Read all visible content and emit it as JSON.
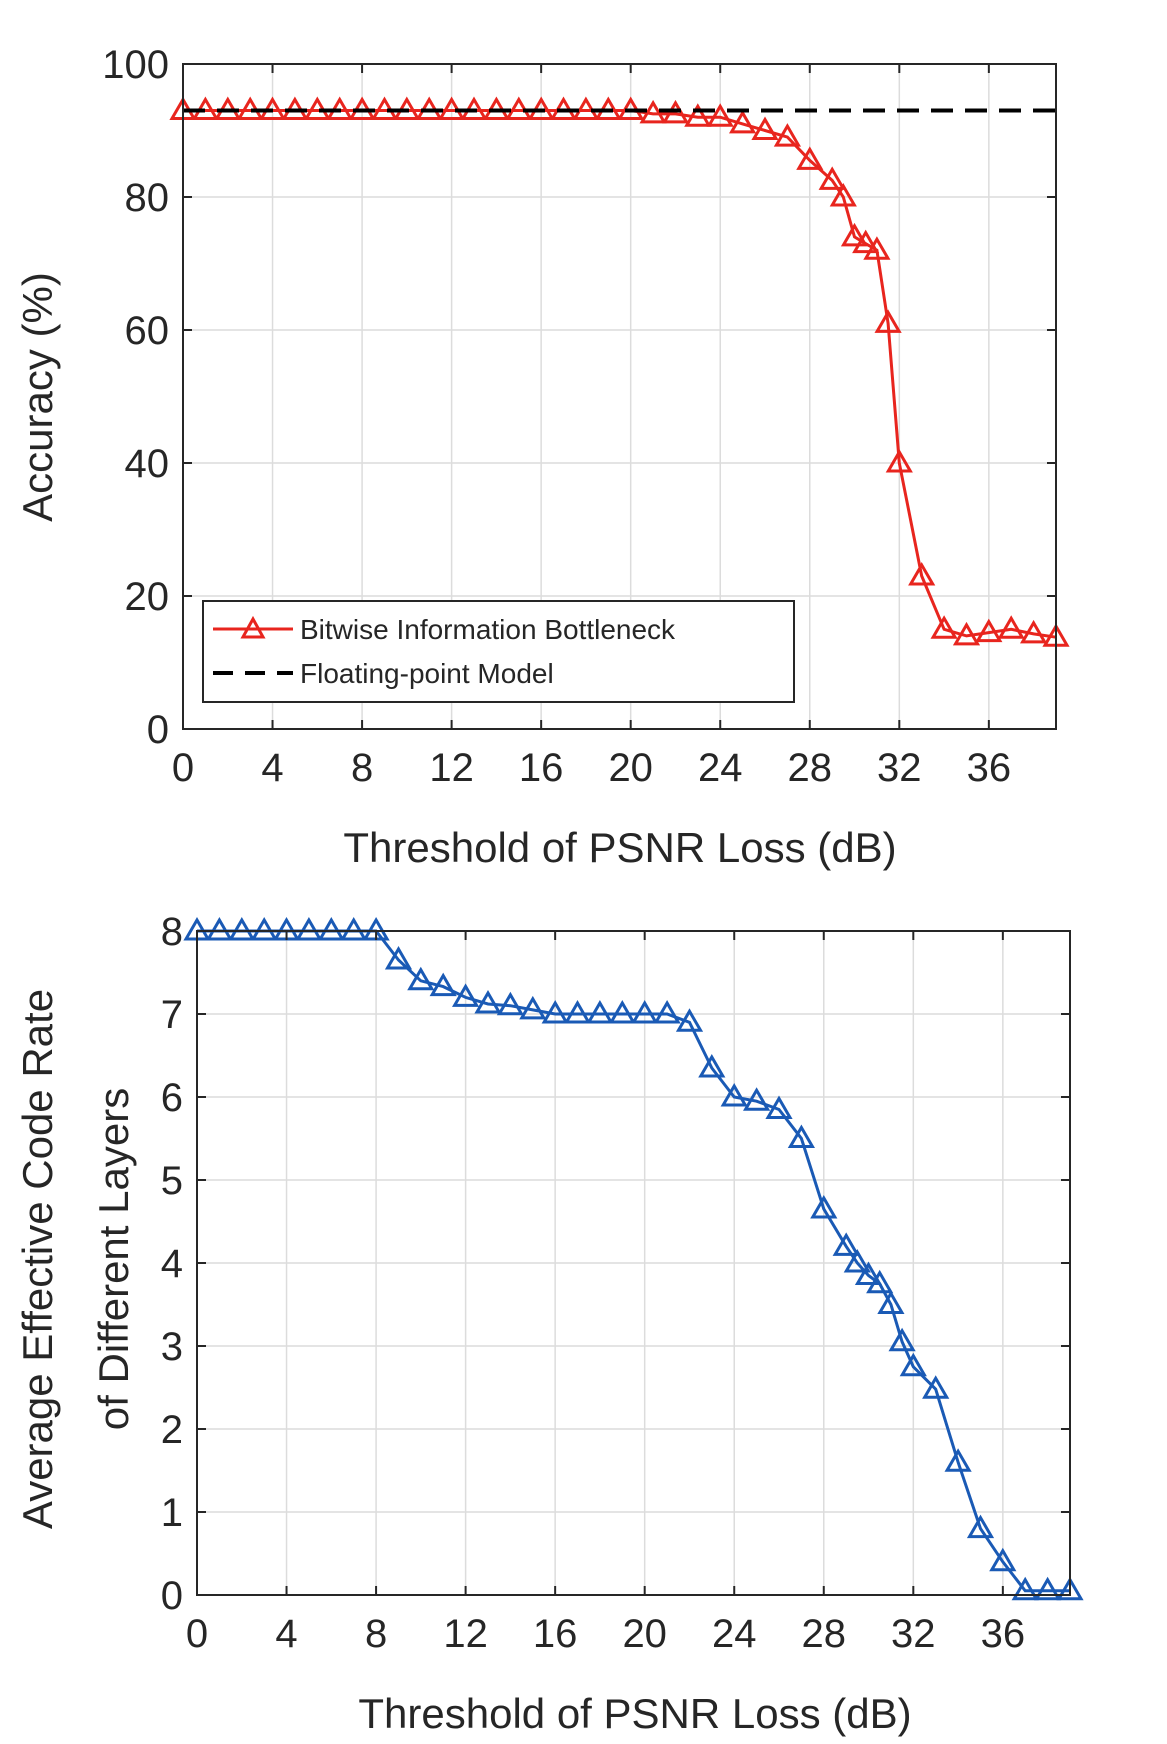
{
  "chart_data": [
    {
      "type": "line",
      "title": "",
      "xlabel": "Threshold of PSNR Loss (dB)",
      "ylabel": "Accuracy (%)",
      "xlim": [
        0,
        39
      ],
      "ylim": [
        0,
        100
      ],
      "xticks": [
        0,
        4,
        8,
        12,
        16,
        20,
        24,
        28,
        32,
        36
      ],
      "yticks": [
        0,
        20,
        40,
        60,
        80,
        100
      ],
      "grid": true,
      "legend_position": "bottom-left",
      "series": [
        {
          "name": "Bitwise Information Bottleneck",
          "color": "#e8251e",
          "line_style": "solid",
          "marker": "triangle",
          "x": [
            0,
            1,
            2,
            3,
            4,
            5,
            6,
            7,
            8,
            9,
            10,
            11,
            12,
            13,
            14,
            15,
            16,
            17,
            18,
            19,
            20,
            21,
            22,
            23,
            24,
            25,
            26,
            27,
            28,
            29,
            29.5,
            30,
            30.5,
            31,
            31.5,
            32,
            33,
            34,
            35,
            36,
            37,
            38,
            39
          ],
          "values": [
            93,
            93,
            93,
            93,
            93,
            93,
            93,
            93,
            93,
            93,
            93,
            93,
            93,
            93,
            93,
            93,
            93,
            93,
            93,
            93,
            93,
            92.5,
            92.5,
            92,
            92,
            91,
            90,
            89,
            85.5,
            82.5,
            80,
            74,
            73,
            72,
            61,
            40,
            23,
            15,
            14,
            14.5,
            15,
            14.3,
            13.8
          ]
        },
        {
          "name": "Floating-point Model",
          "color": "#000000",
          "line_style": "dashed",
          "marker": "none",
          "x": [
            0,
            39
          ],
          "values": [
            93,
            93
          ]
        }
      ]
    },
    {
      "type": "line",
      "title": "",
      "xlabel": "Threshold of PSNR Loss (dB)",
      "ylabel": "Average Effective Code Rate",
      "ylabel2": "of Different Layers",
      "xlim": [
        0,
        39
      ],
      "ylim": [
        0,
        8
      ],
      "xticks": [
        0,
        4,
        8,
        12,
        16,
        20,
        24,
        28,
        32,
        36
      ],
      "yticks": [
        0,
        1,
        2,
        3,
        4,
        5,
        6,
        7,
        8
      ],
      "grid": true,
      "series": [
        {
          "name": "Average Effective Code Rate",
          "color": "#1a5ab5",
          "line_style": "solid",
          "marker": "triangle",
          "x": [
            0,
            1,
            2,
            3,
            4,
            5,
            6,
            7,
            8,
            9,
            10,
            11,
            12,
            13,
            14,
            15,
            16,
            17,
            18,
            19,
            20,
            21,
            22,
            23,
            24,
            25,
            26,
            27,
            28,
            29,
            29.5,
            30,
            30.5,
            31,
            31.5,
            32,
            33,
            34,
            35,
            36,
            37,
            38,
            39
          ],
          "values": [
            8,
            8,
            8,
            8,
            8,
            8,
            8,
            8,
            8,
            7.65,
            7.4,
            7.33,
            7.2,
            7.12,
            7.1,
            7.05,
            7.0,
            7.0,
            7.0,
            7.0,
            7.0,
            7.0,
            6.9,
            6.35,
            6.0,
            5.95,
            5.85,
            5.5,
            4.65,
            4.2,
            4.0,
            3.85,
            3.75,
            3.5,
            3.05,
            2.75,
            2.48,
            1.6,
            0.8,
            0.4,
            0.05,
            0.05,
            0.05
          ]
        }
      ]
    }
  ]
}
